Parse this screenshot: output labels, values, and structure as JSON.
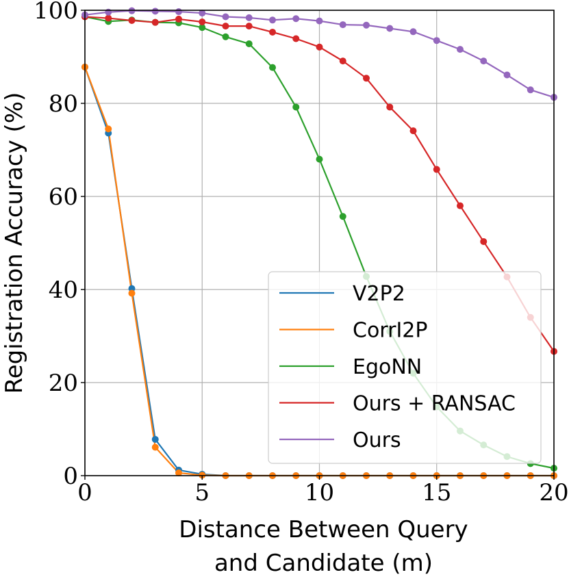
{
  "chart_data": {
    "type": "line",
    "title": "",
    "xlabel_lines": [
      "Distance Between Query",
      "and Candidate (m)"
    ],
    "ylabel": "Registration Accuracy (%)",
    "xlim": [
      0,
      20
    ],
    "ylim": [
      0,
      100
    ],
    "xticks": [
      0,
      5,
      10,
      15,
      20
    ],
    "yticks": [
      0,
      20,
      40,
      60,
      80,
      100
    ],
    "grid": true,
    "legend_position": "lower-right",
    "x": [
      0,
      1,
      2,
      3,
      4,
      5,
      6,
      7,
      8,
      9,
      10,
      11,
      12,
      13,
      14,
      15,
      16,
      17,
      18,
      19,
      20
    ],
    "series": [
      {
        "name": "V2P2",
        "color": "#1f77b4",
        "values": [
          87.8,
          73.6,
          40.2,
          7.8,
          1.2,
          0.3,
          0,
          0,
          0,
          0,
          0,
          0,
          0,
          0,
          0,
          0,
          0,
          0,
          0,
          0,
          0
        ]
      },
      {
        "name": "CorrI2P",
        "color": "#ff7f0e",
        "values": [
          87.8,
          74.5,
          39.2,
          6.1,
          0.6,
          0.1,
          0,
          0,
          0,
          0,
          0,
          0,
          0,
          0,
          0,
          0,
          0,
          0,
          0,
          0,
          0
        ]
      },
      {
        "name": "EgoNN",
        "color": "#2ca02c",
        "values": [
          98.6,
          97.6,
          97.9,
          97.4,
          97.3,
          96.3,
          94.3,
          92.8,
          87.7,
          79.2,
          68.0,
          55.7,
          42.8,
          31.0,
          22.0,
          14.8,
          9.6,
          6.6,
          4.1,
          2.6,
          1.6
        ]
      },
      {
        "name": "Ours + RANSAC",
        "color": "#d62728",
        "values": [
          98.6,
          98.3,
          97.8,
          97.4,
          98.1,
          97.5,
          96.6,
          96.6,
          95.3,
          93.9,
          92.1,
          89.1,
          85.4,
          79.2,
          74.1,
          65.8,
          58.0,
          50.3,
          42.7,
          34.0,
          26.7
        ]
      },
      {
        "name": "Ours",
        "color": "#9467bd",
        "values": [
          99.0,
          99.6,
          99.9,
          99.8,
          99.7,
          99.4,
          98.6,
          98.4,
          97.9,
          98.2,
          97.7,
          96.9,
          96.8,
          96.1,
          95.4,
          93.5,
          91.6,
          89.1,
          86.1,
          82.9,
          81.3
        ]
      }
    ]
  }
}
